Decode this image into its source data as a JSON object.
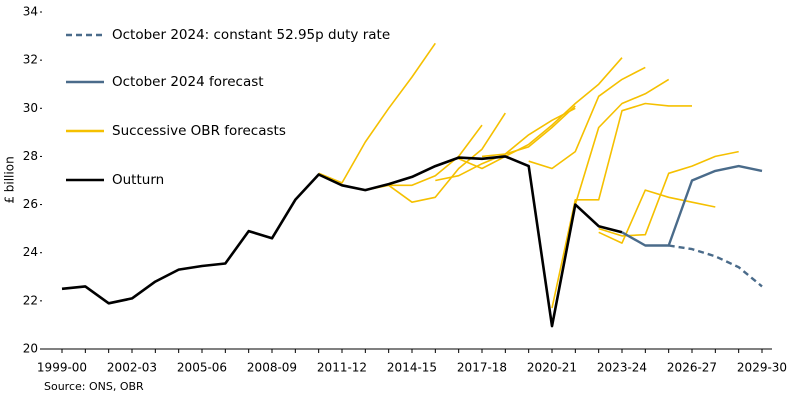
{
  "chart_data": {
    "type": "line",
    "y_label": "£ billion",
    "source": "Source: ONS, OBR",
    "categories": [
      "1999-00",
      null,
      null,
      "2002-03",
      null,
      null,
      "2005-06",
      null,
      null,
      "2008-09",
      null,
      null,
      "2011-12",
      null,
      null,
      "2014-15",
      null,
      null,
      "2017-18",
      null,
      null,
      "2020-21",
      null,
      null,
      "2023-24",
      null,
      null,
      "2026-27",
      null,
      null,
      "2029-30"
    ],
    "ylim": [
      20,
      34
    ],
    "yticks": [
      20,
      22,
      24,
      26,
      28,
      30,
      32,
      34
    ],
    "legend": "top-left",
    "series": [
      {
        "name": "October 2024: constant 52.95p duty rate",
        "color": "#4a6b8a",
        "dashed": true,
        "values": [
          null,
          null,
          null,
          null,
          null,
          null,
          null,
          null,
          null,
          null,
          null,
          null,
          null,
          null,
          null,
          null,
          null,
          null,
          null,
          null,
          null,
          null,
          null,
          null,
          null,
          null,
          24.3,
          24.15,
          23.85,
          23.4,
          22.6
        ]
      },
      {
        "name": "October 2024 forecast",
        "color": "#4a6b8a",
        "values": [
          null,
          null,
          null,
          null,
          null,
          null,
          null,
          null,
          null,
          null,
          null,
          null,
          null,
          null,
          null,
          null,
          null,
          null,
          null,
          null,
          null,
          null,
          null,
          null,
          24.85,
          24.3,
          24.3,
          27.0,
          27.4,
          27.6,
          27.4
        ]
      },
      {
        "name": "Successive OBR forecasts",
        "color": "#f5c000",
        "forecasts": [
          [
            null,
            null,
            null,
            null,
            null,
            null,
            null,
            null,
            null,
            null,
            null,
            27.3,
            26.9,
            28.6,
            30.0,
            31.3,
            32.7,
            null,
            null,
            null,
            null,
            null,
            null,
            null,
            null,
            null,
            null,
            null,
            null,
            null,
            null
          ],
          [
            null,
            null,
            null,
            null,
            null,
            null,
            null,
            null,
            null,
            null,
            null,
            null,
            null,
            26.6,
            26.8,
            26.8,
            27.2,
            28.0,
            29.3,
            null,
            null,
            null,
            null,
            null,
            null,
            null,
            null,
            null,
            null,
            null,
            null
          ],
          [
            null,
            null,
            null,
            null,
            null,
            null,
            null,
            null,
            null,
            null,
            null,
            null,
            null,
            null,
            26.8,
            26.1,
            26.3,
            27.5,
            28.3,
            29.8,
            null,
            null,
            null,
            null,
            null,
            null,
            null,
            null,
            null,
            null,
            null
          ],
          [
            null,
            null,
            null,
            null,
            null,
            null,
            null,
            null,
            null,
            null,
            null,
            null,
            null,
            null,
            null,
            null,
            27.0,
            27.2,
            27.7,
            28.1,
            28.9,
            29.5,
            30.0,
            null,
            null,
            null,
            null,
            null,
            null,
            null,
            null
          ],
          [
            null,
            null,
            null,
            null,
            null,
            null,
            null,
            null,
            null,
            null,
            null,
            null,
            null,
            null,
            null,
            null,
            null,
            27.9,
            27.5,
            28.0,
            28.5,
            29.3,
            30.2,
            31.0,
            32.1,
            null,
            null,
            null,
            null,
            null,
            null
          ],
          [
            null,
            null,
            null,
            null,
            null,
            null,
            null,
            null,
            null,
            null,
            null,
            null,
            null,
            null,
            null,
            null,
            null,
            null,
            28.0,
            28.1,
            28.4,
            29.2,
            30.1,
            null,
            null,
            null,
            null,
            null,
            null,
            null,
            null
          ],
          [
            null,
            null,
            null,
            null,
            null,
            null,
            null,
            null,
            null,
            null,
            null,
            null,
            null,
            null,
            null,
            null,
            null,
            null,
            null,
            null,
            27.8,
            27.5,
            28.2,
            30.5,
            31.2,
            31.7,
            null,
            null,
            null,
            null,
            null
          ],
          [
            null,
            null,
            null,
            null,
            null,
            null,
            null,
            null,
            null,
            null,
            null,
            null,
            null,
            null,
            null,
            null,
            null,
            null,
            null,
            null,
            null,
            21.7,
            26.2,
            26.2,
            29.9,
            30.2,
            30.1,
            30.1,
            null,
            null,
            null
          ],
          [
            null,
            null,
            null,
            null,
            null,
            null,
            null,
            null,
            null,
            null,
            null,
            null,
            null,
            null,
            null,
            null,
            null,
            null,
            null,
            null,
            null,
            null,
            26.0,
            29.2,
            30.2,
            30.6,
            31.2,
            null,
            null,
            null,
            null
          ],
          [
            null,
            null,
            null,
            null,
            null,
            null,
            null,
            null,
            null,
            null,
            null,
            null,
            null,
            null,
            null,
            null,
            null,
            null,
            null,
            null,
            null,
            null,
            null,
            24.85,
            24.4,
            26.6,
            26.3,
            26.1,
            25.9,
            null,
            null
          ],
          [
            null,
            null,
            null,
            null,
            null,
            null,
            null,
            null,
            null,
            null,
            null,
            null,
            null,
            null,
            null,
            null,
            null,
            null,
            null,
            null,
            null,
            null,
            null,
            25.0,
            24.7,
            24.75,
            27.3,
            27.6,
            28.0,
            28.2,
            null
          ]
        ]
      },
      {
        "name": "Outturn",
        "color": "#000000",
        "values": [
          22.5,
          22.6,
          21.9,
          22.1,
          22.8,
          23.3,
          23.45,
          23.55,
          24.9,
          24.6,
          26.2,
          27.25,
          26.8,
          26.6,
          26.85,
          27.15,
          27.6,
          27.95,
          27.9,
          28.0,
          27.6,
          20.95,
          26.0,
          25.1,
          24.85,
          null,
          null,
          null,
          null,
          null,
          null
        ]
      }
    ]
  }
}
